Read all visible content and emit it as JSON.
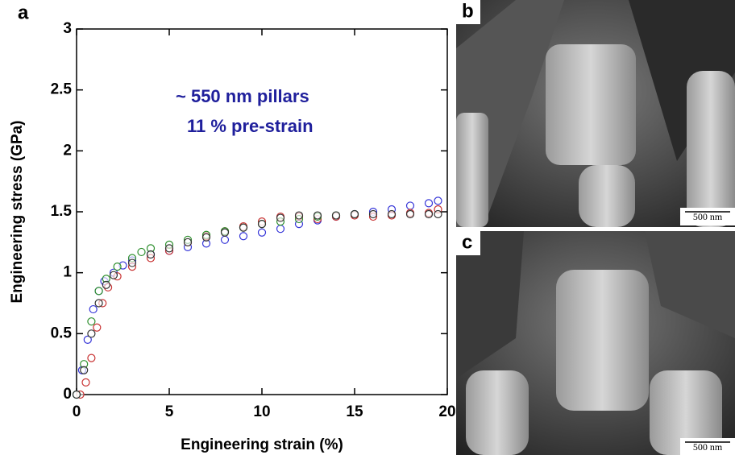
{
  "chart_data": {
    "type": "scatter",
    "panel_label": "a",
    "xlabel": "Engineering strain (%)",
    "ylabel": "Engineering stress (GPa)",
    "annotations": [
      "~ 550 nm pillars",
      "11 % pre-strain"
    ],
    "xlim": [
      0,
      20
    ],
    "ylim": [
      0,
      3
    ],
    "xticks": [
      0,
      5,
      10,
      15,
      20
    ],
    "yticks": [
      0,
      0.5,
      1,
      1.5,
      2,
      2.5,
      3
    ],
    "series": [
      {
        "color": "#3535d8",
        "x": [
          0,
          0.3,
          0.6,
          0.9,
          1.2,
          1.5,
          2,
          2.5,
          3,
          4,
          5,
          6,
          7,
          8,
          9,
          10,
          11,
          12,
          13,
          14,
          15,
          16,
          17,
          18,
          19,
          19.5
        ],
        "values": [
          0,
          0.2,
          0.45,
          0.7,
          0.85,
          0.93,
          1.0,
          1.06,
          1.1,
          1.15,
          1.18,
          1.21,
          1.24,
          1.27,
          1.3,
          1.33,
          1.36,
          1.4,
          1.43,
          1.46,
          1.48,
          1.5,
          1.52,
          1.55,
          1.57,
          1.59
        ]
      },
      {
        "color": "#c83232",
        "x": [
          0.2,
          0.5,
          0.8,
          1.1,
          1.4,
          1.7,
          2.2,
          3,
          4,
          5,
          6,
          7,
          8,
          9,
          10,
          11,
          12,
          13,
          14,
          15,
          16,
          17,
          18,
          19,
          19.5
        ],
        "values": [
          0,
          0.1,
          0.3,
          0.55,
          0.75,
          0.88,
          0.97,
          1.05,
          1.12,
          1.18,
          1.25,
          1.3,
          1.34,
          1.38,
          1.42,
          1.46,
          1.46,
          1.44,
          1.46,
          1.47,
          1.46,
          1.47,
          1.49,
          1.49,
          1.52
        ]
      },
      {
        "color": "#2e8f2e",
        "x": [
          0,
          0.4,
          0.8,
          1.2,
          1.6,
          2.2,
          3,
          3.5,
          4,
          5,
          6,
          7,
          8,
          9,
          10,
          11,
          12,
          13,
          14,
          15
        ],
        "values": [
          0,
          0.25,
          0.6,
          0.85,
          0.95,
          1.05,
          1.12,
          1.17,
          1.2,
          1.23,
          1.27,
          1.31,
          1.34,
          1.37,
          1.4,
          1.42,
          1.44,
          1.46,
          1.47,
          1.48
        ]
      },
      {
        "color": "#333333",
        "x": [
          0,
          0.4,
          0.8,
          1.2,
          1.6,
          2,
          3,
          4,
          5,
          6,
          7,
          8,
          9,
          10,
          11,
          12,
          13,
          14,
          15,
          16,
          17,
          18,
          19,
          19.5
        ],
        "values": [
          0,
          0.2,
          0.5,
          0.75,
          0.9,
          0.98,
          1.08,
          1.15,
          1.2,
          1.25,
          1.29,
          1.33,
          1.37,
          1.4,
          1.45,
          1.47,
          1.47,
          1.47,
          1.48,
          1.48,
          1.48,
          1.48,
          1.48,
          1.48
        ]
      }
    ]
  },
  "images": [
    {
      "label": "b",
      "scale_bar": "500 nm"
    },
    {
      "label": "c",
      "scale_bar": "500 nm"
    }
  ]
}
